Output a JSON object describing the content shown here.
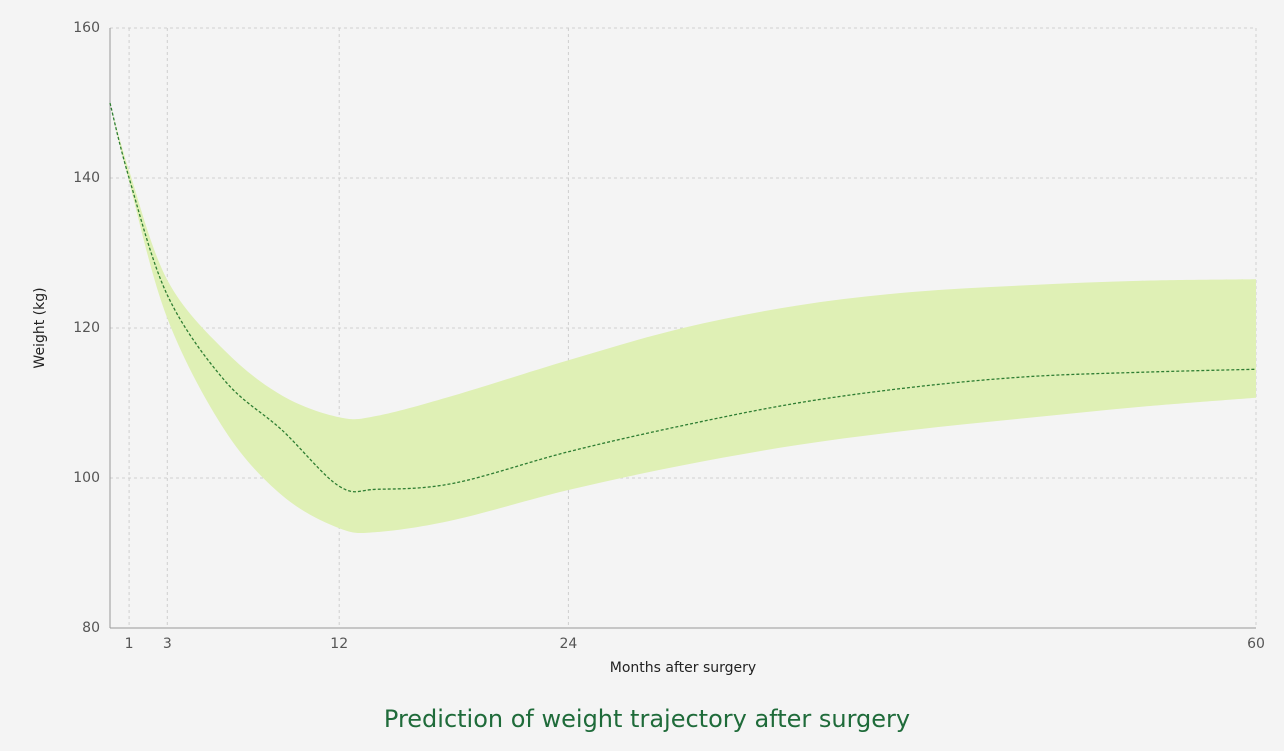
{
  "chart_data": {
    "type": "line",
    "title": "Prediction of weight trajectory after surgery",
    "x_label": "Months after surgery",
    "y_label": "Weight (kg)",
    "x": [
      0,
      1,
      3,
      6,
      9,
      12,
      14,
      18,
      24,
      30,
      36,
      42,
      48,
      54,
      60
    ],
    "mean": [
      150,
      140,
      124.4,
      113,
      106.4,
      98.9,
      98.5,
      99.3,
      103.5,
      107,
      110,
      112.1,
      113.5,
      114.1,
      114.5
    ],
    "upper": [
      150,
      141,
      126.4,
      117,
      111,
      108.1,
      108.3,
      111,
      115.7,
      120,
      123,
      124.8,
      125.7,
      126.3,
      126.5
    ],
    "lower": [
      150,
      139.5,
      121.3,
      106.4,
      97.7,
      93.3,
      92.8,
      94.4,
      98.4,
      101.7,
      104.4,
      106.4,
      108,
      109.5,
      110.7
    ],
    "line_color": "#2e7d32",
    "band_color": "#dff0b5",
    "xlim": [
      0,
      60
    ],
    "xticks": [
      1,
      3,
      12,
      24,
      60
    ],
    "ylim": [
      80,
      160
    ],
    "yticks": [
      80,
      100,
      120,
      140,
      160
    ],
    "grid": true
  }
}
